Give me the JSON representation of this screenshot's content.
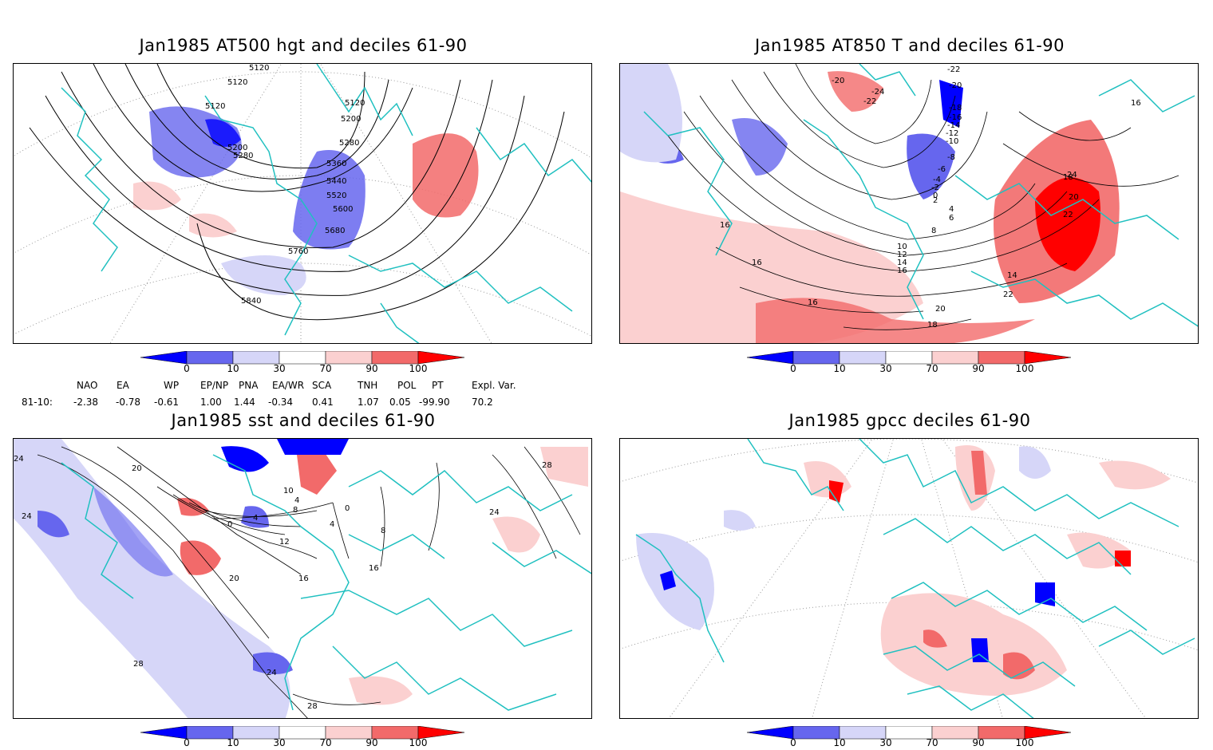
{
  "panels": [
    {
      "id": "p1",
      "title": "Jan1985 AT500 hgt and deciles 61-90",
      "contour_labels": [
        "5120",
        "5120",
        "5120",
        "5120",
        "5200",
        "5200",
        "5280",
        "5280",
        "5360",
        "5440",
        "5520",
        "5600",
        "5680",
        "5760",
        "5840"
      ]
    },
    {
      "id": "p2",
      "title": "Jan1985 AT850 T and deciles 61-90",
      "contour_labels": [
        "-22",
        "-20",
        "-24",
        "-22",
        "-20",
        "-18",
        "-16",
        "-14",
        "-12",
        "-10",
        "-8",
        "-6",
        "-4",
        "-2",
        "0",
        "2",
        "4",
        "6",
        "8",
        "10",
        "12",
        "14",
        "16",
        "18",
        "20",
        "22",
        "24",
        "14",
        "16",
        "16",
        "16",
        "18",
        "20",
        "22",
        "16"
      ]
    },
    {
      "id": "p3",
      "title": "Jan1985 sst and deciles 61-90",
      "contour_labels": [
        "20",
        "24",
        "24",
        "0",
        "4",
        "8",
        "10",
        "12",
        "16",
        "20",
        "4",
        "0",
        "16",
        "8",
        "28",
        "24",
        "28",
        "24",
        "28",
        "4"
      ]
    },
    {
      "id": "p4",
      "title": "Jan1985 gpcc deciles 61-90",
      "contour_labels": []
    }
  ],
  "colorbar": {
    "ticks": [
      "0",
      "10",
      "30",
      "70",
      "90",
      "100"
    ],
    "colors": {
      "dark_blue": "#0000ff",
      "mid_blue": "#6666ee",
      "light_blue": "#d6d6f8",
      "white": "#ffffff",
      "light_red": "#fbd0d0",
      "mid_red": "#f26a6a",
      "dark_red": "#ff0000"
    }
  },
  "indices": {
    "headers": [
      "NAO",
      "EA",
      "WP",
      "EP/NP",
      "PNA",
      "EA/WR",
      "SCA",
      "TNH",
      "POL",
      "PT",
      "Expl. Var."
    ],
    "row_label": "81-10:",
    "values": [
      "-2.38",
      "-0.78",
      "-0.61",
      "1.00",
      "1.44",
      "-0.34",
      "0.41",
      "1.07",
      "0.05",
      "-99.90",
      "70.2"
    ]
  },
  "colors": {
    "coastline": "#20c0c0",
    "contour": "#000000",
    "frame": "#000000"
  }
}
